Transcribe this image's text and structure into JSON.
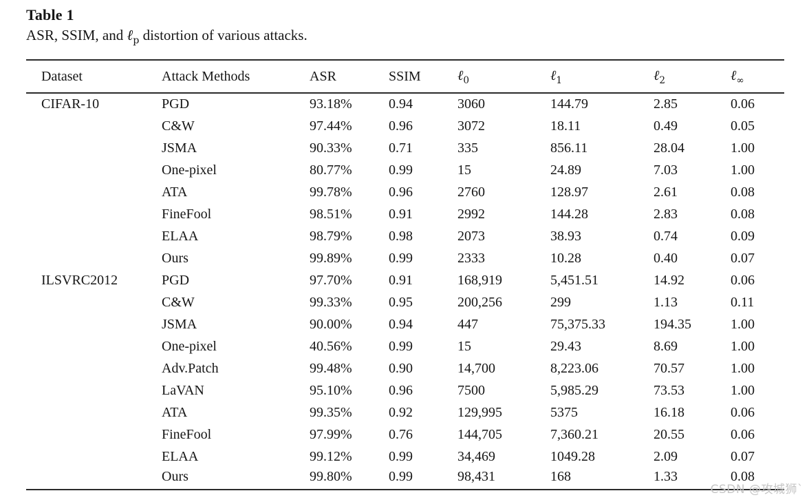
{
  "table": {
    "title": "Table 1",
    "caption": {
      "prefix": "ASR, SSIM, and ",
      "symbol": "ℓ",
      "sub": "p",
      "suffix": " distortion of various attacks."
    },
    "columns": [
      {
        "key": "dataset",
        "label": "Dataset"
      },
      {
        "key": "method",
        "label": "Attack Methods"
      },
      {
        "key": "asr",
        "label": "ASR"
      },
      {
        "key": "ssim",
        "label": "SSIM"
      },
      {
        "key": "l0",
        "label": "ℓ",
        "sub": "0"
      },
      {
        "key": "l1",
        "label": "ℓ",
        "sub": "1"
      },
      {
        "key": "l2",
        "label": "ℓ",
        "sub": "2"
      },
      {
        "key": "linf",
        "label": "ℓ",
        "sub": "∞"
      }
    ],
    "rows": [
      {
        "dataset": "CIFAR-10",
        "method": "PGD",
        "asr": "93.18%",
        "ssim": "0.94",
        "l0": "3060",
        "l1": "144.79",
        "l2": "2.85",
        "linf": "0.06"
      },
      {
        "dataset": "",
        "method": "C&W",
        "asr": "97.44%",
        "ssim": "0.96",
        "l0": "3072",
        "l1": "18.11",
        "l2": "0.49",
        "linf": "0.05"
      },
      {
        "dataset": "",
        "method": "JSMA",
        "asr": "90.33%",
        "ssim": "0.71",
        "l0": "335",
        "l1": "856.11",
        "l2": "28.04",
        "linf": "1.00"
      },
      {
        "dataset": "",
        "method": "One-pixel",
        "asr": "80.77%",
        "ssim": "0.99",
        "l0": "15",
        "l1": "24.89",
        "l2": "7.03",
        "linf": "1.00"
      },
      {
        "dataset": "",
        "method": "ATA",
        "asr": "99.78%",
        "ssim": "0.96",
        "l0": "2760",
        "l1": "128.97",
        "l2": "2.61",
        "linf": "0.08"
      },
      {
        "dataset": "",
        "method": "FineFool",
        "asr": "98.51%",
        "ssim": "0.91",
        "l0": "2992",
        "l1": "144.28",
        "l2": "2.83",
        "linf": "0.08"
      },
      {
        "dataset": "",
        "method": "ELAA",
        "asr": "98.79%",
        "ssim": "0.98",
        "l0": "2073",
        "l1": "38.93",
        "l2": "0.74",
        "linf": "0.09"
      },
      {
        "dataset": "",
        "method": "Ours",
        "asr": "99.89%",
        "ssim": "0.99",
        "l0": "2333",
        "l1": "10.28",
        "l2": "0.40",
        "linf": "0.07"
      },
      {
        "dataset": "ILSVRC2012",
        "method": "PGD",
        "asr": "97.70%",
        "ssim": "0.91",
        "l0": "168,919",
        "l1": "5,451.51",
        "l2": "14.92",
        "linf": "0.06"
      },
      {
        "dataset": "",
        "method": "C&W",
        "asr": "99.33%",
        "ssim": "0.95",
        "l0": "200,256",
        "l1": "299",
        "l2": "1.13",
        "linf": "0.11"
      },
      {
        "dataset": "",
        "method": "JSMA",
        "asr": "90.00%",
        "ssim": "0.94",
        "l0": "447",
        "l1": "75,375.33",
        "l2": "194.35",
        "linf": "1.00"
      },
      {
        "dataset": "",
        "method": "One-pixel",
        "asr": "40.56%",
        "ssim": "0.99",
        "l0": "15",
        "l1": "29.43",
        "l2": "8.69",
        "linf": "1.00"
      },
      {
        "dataset": "",
        "method": "Adv.Patch",
        "asr": "99.48%",
        "ssim": "0.90",
        "l0": "14,700",
        "l1": "8,223.06",
        "l2": "70.57",
        "linf": "1.00"
      },
      {
        "dataset": "",
        "method": "LaVAN",
        "asr": "95.10%",
        "ssim": "0.96",
        "l0": "7500",
        "l1": "5,985.29",
        "l2": "73.53",
        "linf": "1.00"
      },
      {
        "dataset": "",
        "method": "ATA",
        "asr": "99.35%",
        "ssim": "0.92",
        "l0": "129,995",
        "l1": "5375",
        "l2": "16.18",
        "linf": "0.06"
      },
      {
        "dataset": "",
        "method": "FineFool",
        "asr": "97.99%",
        "ssim": "0.76",
        "l0": "144,705",
        "l1": "7,360.21",
        "l2": "20.55",
        "linf": "0.06"
      },
      {
        "dataset": "",
        "method": "ELAA",
        "asr": "99.12%",
        "ssim": "0.99",
        "l0": "34,469",
        "l1": "1049.28",
        "l2": "2.09",
        "linf": "0.07"
      },
      {
        "dataset": "",
        "method": "Ours",
        "asr": "99.80%",
        "ssim": "0.99",
        "l0": "98,431",
        "l1": "168",
        "l2": "1.33",
        "linf": "0.08"
      }
    ]
  },
  "watermark": {
    "text": "CSDN @攻城狮`",
    "color": "#c6c6c6"
  }
}
